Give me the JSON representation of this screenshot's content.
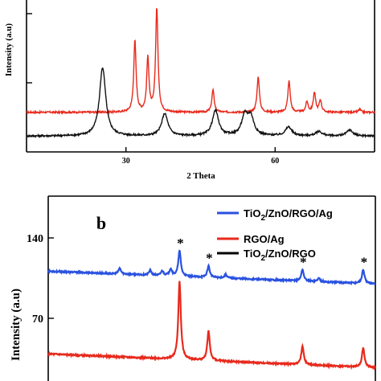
{
  "chart_data": [
    {
      "panel": "a",
      "type": "line",
      "xlabel": "2 Theta",
      "ylabel": "Intensity (a.u)",
      "xlim": [
        10,
        80
      ],
      "x_ticks": [
        30,
        60
      ],
      "series": [
        {
          "color": "#e8291c",
          "baseline": 0.9,
          "peaks": [
            {
              "x": 31.8,
              "h": 2.4
            },
            {
              "x": 34.4,
              "h": 1.8
            },
            {
              "x": 36.2,
              "h": 3.5
            },
            {
              "x": 47.5,
              "h": 0.75
            },
            {
              "x": 56.6,
              "h": 1.2
            },
            {
              "x": 62.8,
              "h": 1.05
            },
            {
              "x": 66.4,
              "h": 0.35
            },
            {
              "x": 67.9,
              "h": 0.65
            },
            {
              "x": 69.1,
              "h": 0.4
            },
            {
              "x": 77.0,
              "h": 0.1
            }
          ]
        },
        {
          "color": "#111111",
          "baseline": 0.1,
          "peaks": [
            {
              "x": 25.3,
              "h": 2.3
            },
            {
              "x": 37.8,
              "h": 0.75
            },
            {
              "x": 48.0,
              "h": 0.85
            },
            {
              "x": 53.9,
              "h": 0.65
            },
            {
              "x": 55.1,
              "h": 0.6
            },
            {
              "x": 62.7,
              "h": 0.3
            },
            {
              "x": 68.8,
              "h": 0.15
            },
            {
              "x": 75.0,
              "h": 0.2
            }
          ]
        }
      ]
    },
    {
      "panel": "b",
      "panel_label": "b",
      "type": "line",
      "ylabel": "Intensity (a.u)",
      "y_ticks": [
        70,
        140
      ],
      "ylim": [
        20,
        190
      ],
      "xlim": [
        10,
        80
      ],
      "legend": "top-right",
      "series": [
        {
          "name": "TiO2/ZnO/RGO/Ag",
          "name_parts": [
            "TiO",
            "2",
            "/ZnO/RGO/Ag"
          ],
          "color": "#2a52e0",
          "baseline": 111,
          "end_value": 100,
          "peaks": [
            {
              "x": 25.3,
              "h": 5
            },
            {
              "x": 31.8,
              "h": 4
            },
            {
              "x": 34.4,
              "h": 4
            },
            {
              "x": 36.2,
              "h": 6
            },
            {
              "x": 38.1,
              "h": 22
            },
            {
              "x": 44.3,
              "h": 10
            },
            {
              "x": 48.0,
              "h": 3
            },
            {
              "x": 64.4,
              "h": 10
            },
            {
              "x": 67.9,
              "h": 3
            },
            {
              "x": 77.4,
              "h": 12
            }
          ],
          "markers": [
            38.1,
            44.3,
            64.4,
            77.4
          ]
        },
        {
          "name": "RGO/Ag",
          "color": "#e8291c",
          "baseline": 39,
          "end_value": 27,
          "peaks": [
            {
              "x": 38.1,
              "h": 68
            },
            {
              "x": 44.3,
              "h": 26
            },
            {
              "x": 64.4,
              "h": 16
            },
            {
              "x": 77.4,
              "h": 17
            }
          ]
        },
        {
          "name": "TiO2/ZnO/RGO",
          "name_parts": [
            "TiO",
            "2",
            "/ZnO/RGO"
          ],
          "color": "#000000"
        }
      ],
      "marker_symbol": "*"
    }
  ]
}
